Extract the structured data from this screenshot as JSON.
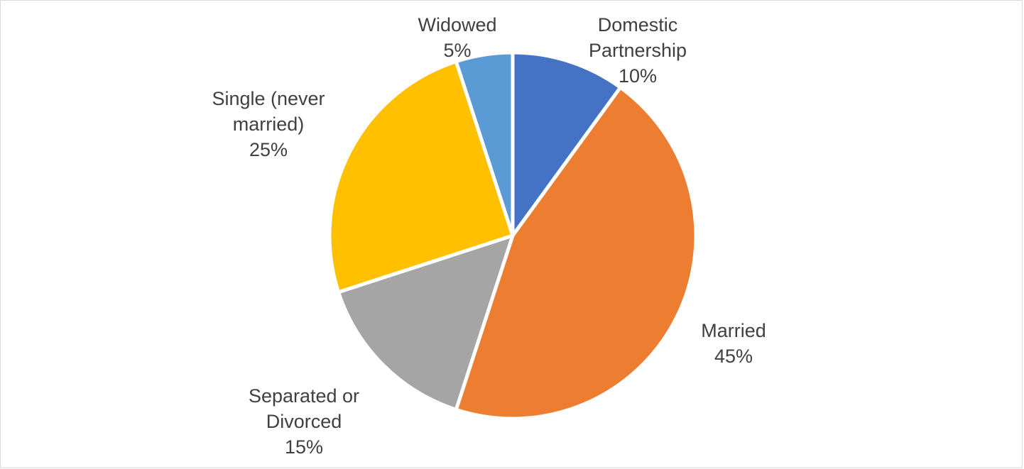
{
  "chart_data": {
    "type": "pie",
    "title": "",
    "start_angle_deg": 0,
    "direction": "clockwise",
    "slice_border_color": "#ffffff",
    "label_color": "#404040",
    "slices": [
      {
        "category": "Domestic Partnership",
        "value": 10,
        "value_label": "10%",
        "color": "#4472C4",
        "label_lines": [
          "Domestic",
          "Partnership",
          "10%"
        ]
      },
      {
        "category": "Married",
        "value": 45,
        "value_label": "45%",
        "color": "#ED7D31",
        "label_lines": [
          "Married",
          "45%"
        ]
      },
      {
        "category": "Separated or Divorced",
        "value": 15,
        "value_label": "15%",
        "color": "#A5A5A5",
        "label_lines": [
          "Separated or",
          "Divorced",
          "15%"
        ]
      },
      {
        "category": "Single (never married)",
        "value": 25,
        "value_label": "25%",
        "color": "#FFC000",
        "label_lines": [
          "Single (never",
          "married)",
          "25%"
        ]
      },
      {
        "category": "Widowed",
        "value": 5,
        "value_label": "5%",
        "color": "#5B9BD5",
        "label_lines": [
          "Widowed",
          "5%"
        ]
      }
    ]
  }
}
